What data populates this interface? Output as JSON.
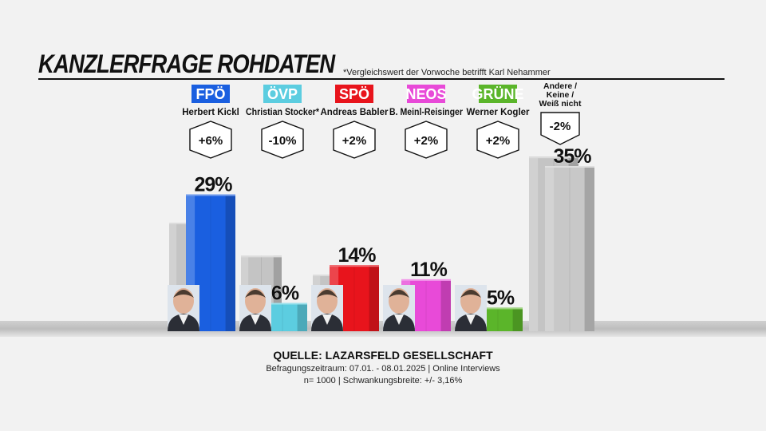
{
  "header": {
    "title": "KANZLERFRAGE ROHDATEN",
    "footnote": "*Vergleichswert der Vorwoche betrifft Karl Nehammer"
  },
  "source": {
    "title": "QUELLE: LAZARSFELD GESELLSCHAFT",
    "line1": "Befragungszeitraum: 07.01. - 08.01.2025 | Online Interviews",
    "line2": "n= 1000 | Schwankungsbreite: +/- 3,16%"
  },
  "chart_data": {
    "type": "bar",
    "title": "KANZLERFRAGE ROHDATEN",
    "categories": [
      "FPÖ",
      "ÖVP",
      "SPÖ",
      "NEOS",
      "GRÜNE",
      "Andere / Keine / Weiß nicht"
    ],
    "candidates": [
      "Herbert Kickl",
      "Christian Stocker*",
      "Andreas Babler",
      "B. Meinl-Reisinger",
      "Werner Kogler",
      ""
    ],
    "values": [
      29,
      6,
      14,
      11,
      5,
      35
    ],
    "value_labels": [
      "29%",
      "6%",
      "14%",
      "11%",
      "5%",
      "35%"
    ],
    "changes": [
      "+6%",
      "-10%",
      "+2%",
      "+2%",
      "+2%",
      "-2%"
    ],
    "previous_values": [
      23,
      16,
      12,
      9,
      3,
      37
    ],
    "colors": [
      "#1a5fe0",
      "#5ccde0",
      "#e8141c",
      "#e84ad8",
      "#5bb52a",
      "#c8c8c8"
    ],
    "previous_color": "#c4c4c4",
    "badge_style": [
      "box",
      "box",
      "box",
      "box",
      "box",
      "text"
    ],
    "photos": [
      "face",
      "face",
      "face",
      "face",
      "face",
      "none"
    ],
    "ylim": [
      0,
      35
    ]
  }
}
